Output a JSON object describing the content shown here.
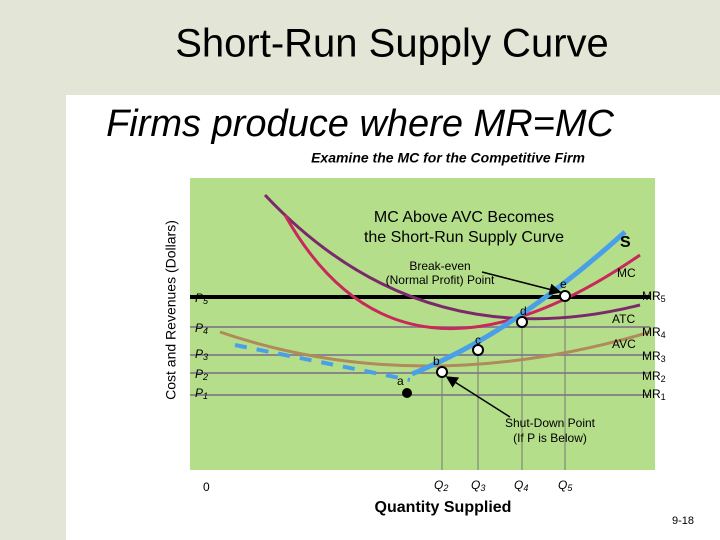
{
  "header": {
    "title": "Short-Run Supply Curve"
  },
  "subtitle": "Firms produce where MR=MC",
  "caption": "Examine the MC for the Competitive Firm",
  "diagram": {
    "y_axis_label": "Cost and Revenues (Dollars)",
    "x_axis_label": "Quantity Supplied",
    "origin": "0",
    "callout": [
      "MC Above AVC Becomes",
      "the Short-Run Supply Curve"
    ],
    "break_even": [
      "Break-even",
      "(Normal Profit) Point"
    ],
    "shut_down": [
      "Shut-Down Point",
      "(If P is Below)"
    ],
    "curve_labels": {
      "supply": "S",
      "mc": "MC",
      "atc": "ATC",
      "avc": "AVC"
    },
    "prices": [
      {
        "symbol": "P",
        "sub": "5"
      },
      {
        "symbol": "P",
        "sub": "4"
      },
      {
        "symbol": "P",
        "sub": "3"
      },
      {
        "symbol": "P",
        "sub": "2"
      },
      {
        "symbol": "P",
        "sub": "1"
      }
    ],
    "revenues": [
      {
        "symbol": "MR",
        "sub": "5"
      },
      {
        "symbol": "MR",
        "sub": "4"
      },
      {
        "symbol": "MR",
        "sub": "3"
      },
      {
        "symbol": "MR",
        "sub": "2"
      },
      {
        "symbol": "MR",
        "sub": "1"
      }
    ],
    "quantities": [
      {
        "symbol": "Q",
        "sub": "2"
      },
      {
        "symbol": "Q",
        "sub": "3"
      },
      {
        "symbol": "Q",
        "sub": "4"
      },
      {
        "symbol": "Q",
        "sub": "5"
      }
    ],
    "points": [
      "a",
      "b",
      "c",
      "d",
      "e"
    ]
  },
  "footer": {
    "page": "9-18"
  }
}
